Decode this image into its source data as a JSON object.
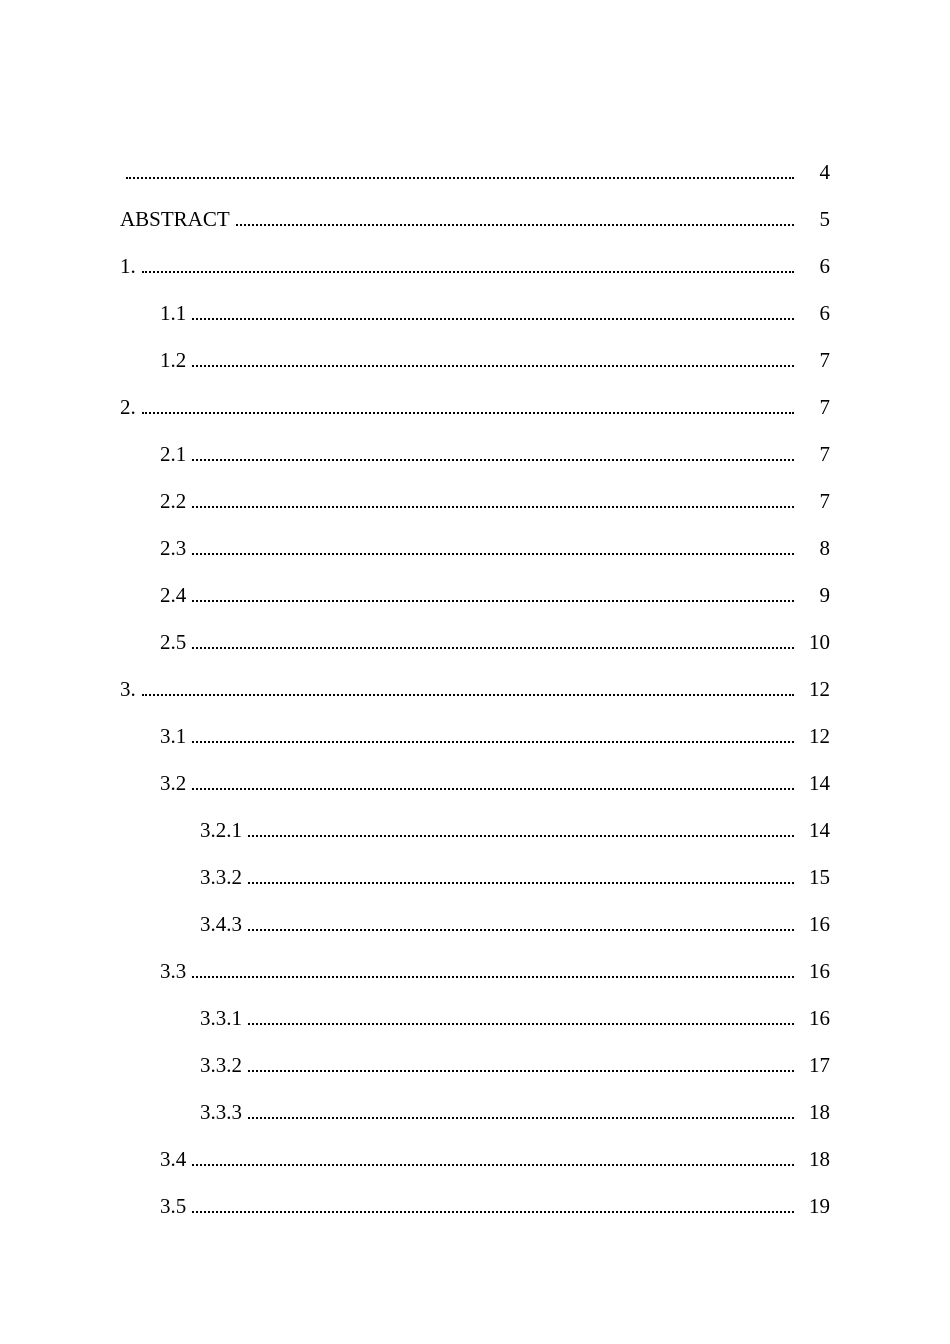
{
  "toc": {
    "entries": [
      {
        "label": "",
        "page": "4",
        "indent": 0
      },
      {
        "label": "ABSTRACT",
        "page": "5",
        "indent": 0
      },
      {
        "label": "1.",
        "page": "6",
        "indent": 0
      },
      {
        "label": "1.1",
        "page": "6",
        "indent": 1
      },
      {
        "label": "1.2",
        "page": "7",
        "indent": 1
      },
      {
        "label": "2.",
        "page": "7",
        "indent": 0
      },
      {
        "label": "2.1",
        "page": "7",
        "indent": 1
      },
      {
        "label": "2.2",
        "page": "7",
        "indent": 1
      },
      {
        "label": "2.3",
        "page": "8",
        "indent": 1
      },
      {
        "label": "2.4",
        "page": "9",
        "indent": 1
      },
      {
        "label": "2.5",
        "page": "10",
        "indent": 1
      },
      {
        "label": "3.",
        "page": "12",
        "indent": 0
      },
      {
        "label": "3.1",
        "page": "12",
        "indent": 1
      },
      {
        "label": "3.2",
        "page": "14",
        "indent": 1
      },
      {
        "label": "3.2.1",
        "page": "14",
        "indent": 2
      },
      {
        "label": "3.3.2",
        "page": "15",
        "indent": 2
      },
      {
        "label": "3.4.3",
        "page": "16",
        "indent": 2
      },
      {
        "label": "3.3",
        "page": "16",
        "indent": 1
      },
      {
        "label": "3.3.1",
        "page": "16",
        "indent": 2
      },
      {
        "label": "3.3.2",
        "page": "17",
        "indent": 2
      },
      {
        "label": "3.3.3",
        "page": "18",
        "indent": 2
      },
      {
        "label": "3.4",
        "page": "18",
        "indent": 1
      },
      {
        "label": "3.5",
        "page": "19",
        "indent": 1
      }
    ]
  }
}
